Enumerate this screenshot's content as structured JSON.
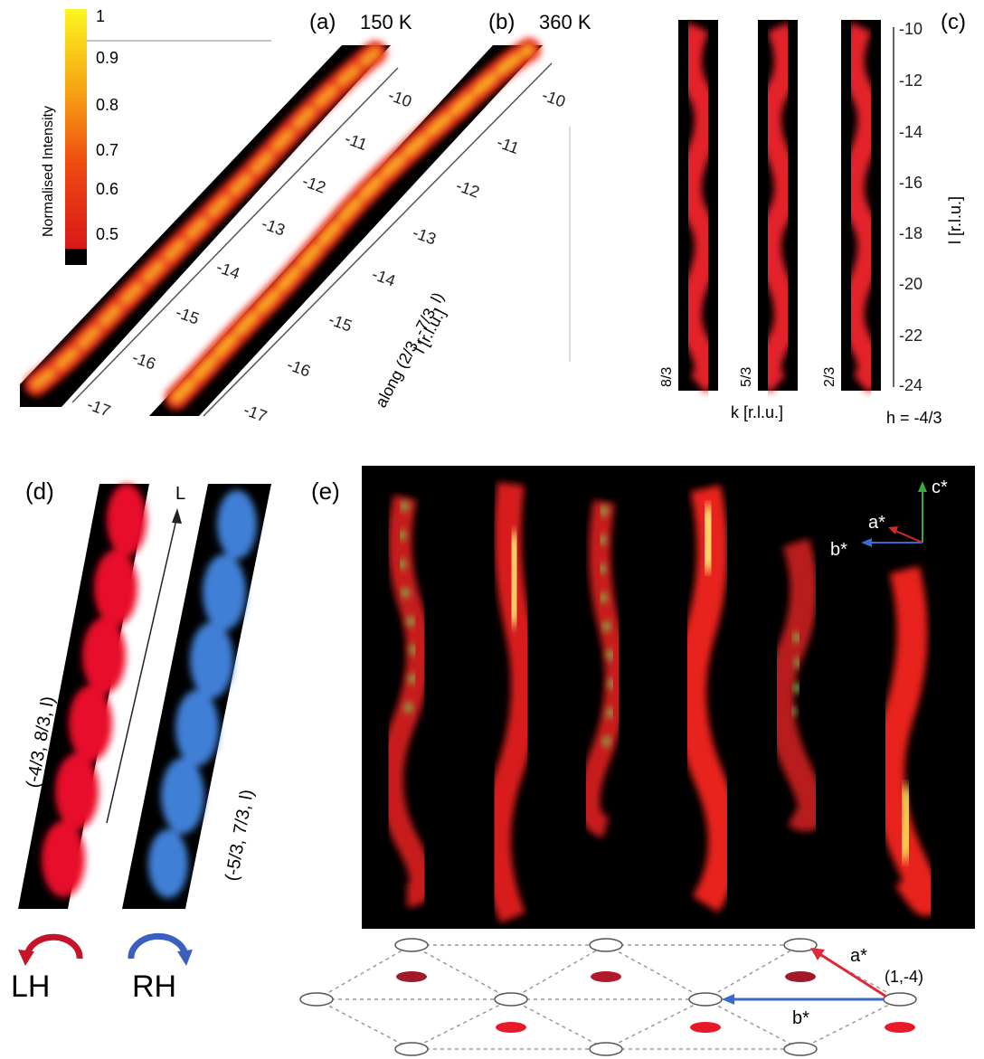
{
  "colorbar": {
    "label": "Normalised Intensity",
    "ticks": [
      "1",
      "0.9",
      "0.8",
      "0.7",
      "0.6",
      "0.5"
    ]
  },
  "panel_a": {
    "letter": "(a)",
    "temp": "150 K",
    "ticks": [
      "-10",
      "-11",
      "-12",
      "-13",
      "-14",
      "-15",
      "-16",
      "-17"
    ]
  },
  "panel_b": {
    "letter": "(b)",
    "temp": "360 K",
    "ticks": [
      "-10",
      "-11",
      "-12",
      "-13",
      "-14",
      "-15",
      "-16",
      "-17"
    ],
    "axis_l": "l [r.l.u.]",
    "axis_along": "along (2/3, -7/3, l)"
  },
  "panel_c": {
    "letter": "(c)",
    "yticks": [
      "-10",
      "-12",
      "-14",
      "-16",
      "-18",
      "-20",
      "-22",
      "-24"
    ],
    "ylabel": "l [r.l.u.]",
    "strip_labels": [
      "8/3",
      "5/3",
      "2/3"
    ],
    "xlabel": "k [r.l.u.]",
    "h_label": "h = -4/3"
  },
  "panel_d": {
    "letter": "(d)",
    "arrow_label": "L",
    "strip1": "(-4/3, 8/3, l)",
    "strip2": "(-5/3, 7/3, l)",
    "lh": "LH",
    "rh": "RH"
  },
  "panel_e": {
    "letter": "(e)",
    "axes": {
      "c": "c*",
      "a": "a*",
      "b": "b*"
    },
    "lattice": {
      "a": "a*",
      "b": "b*",
      "point": "(1,-4)"
    }
  },
  "colors": {
    "red_helix": "#e8102a",
    "blue_helix": "#3f7fd6",
    "bg": "#000000"
  }
}
